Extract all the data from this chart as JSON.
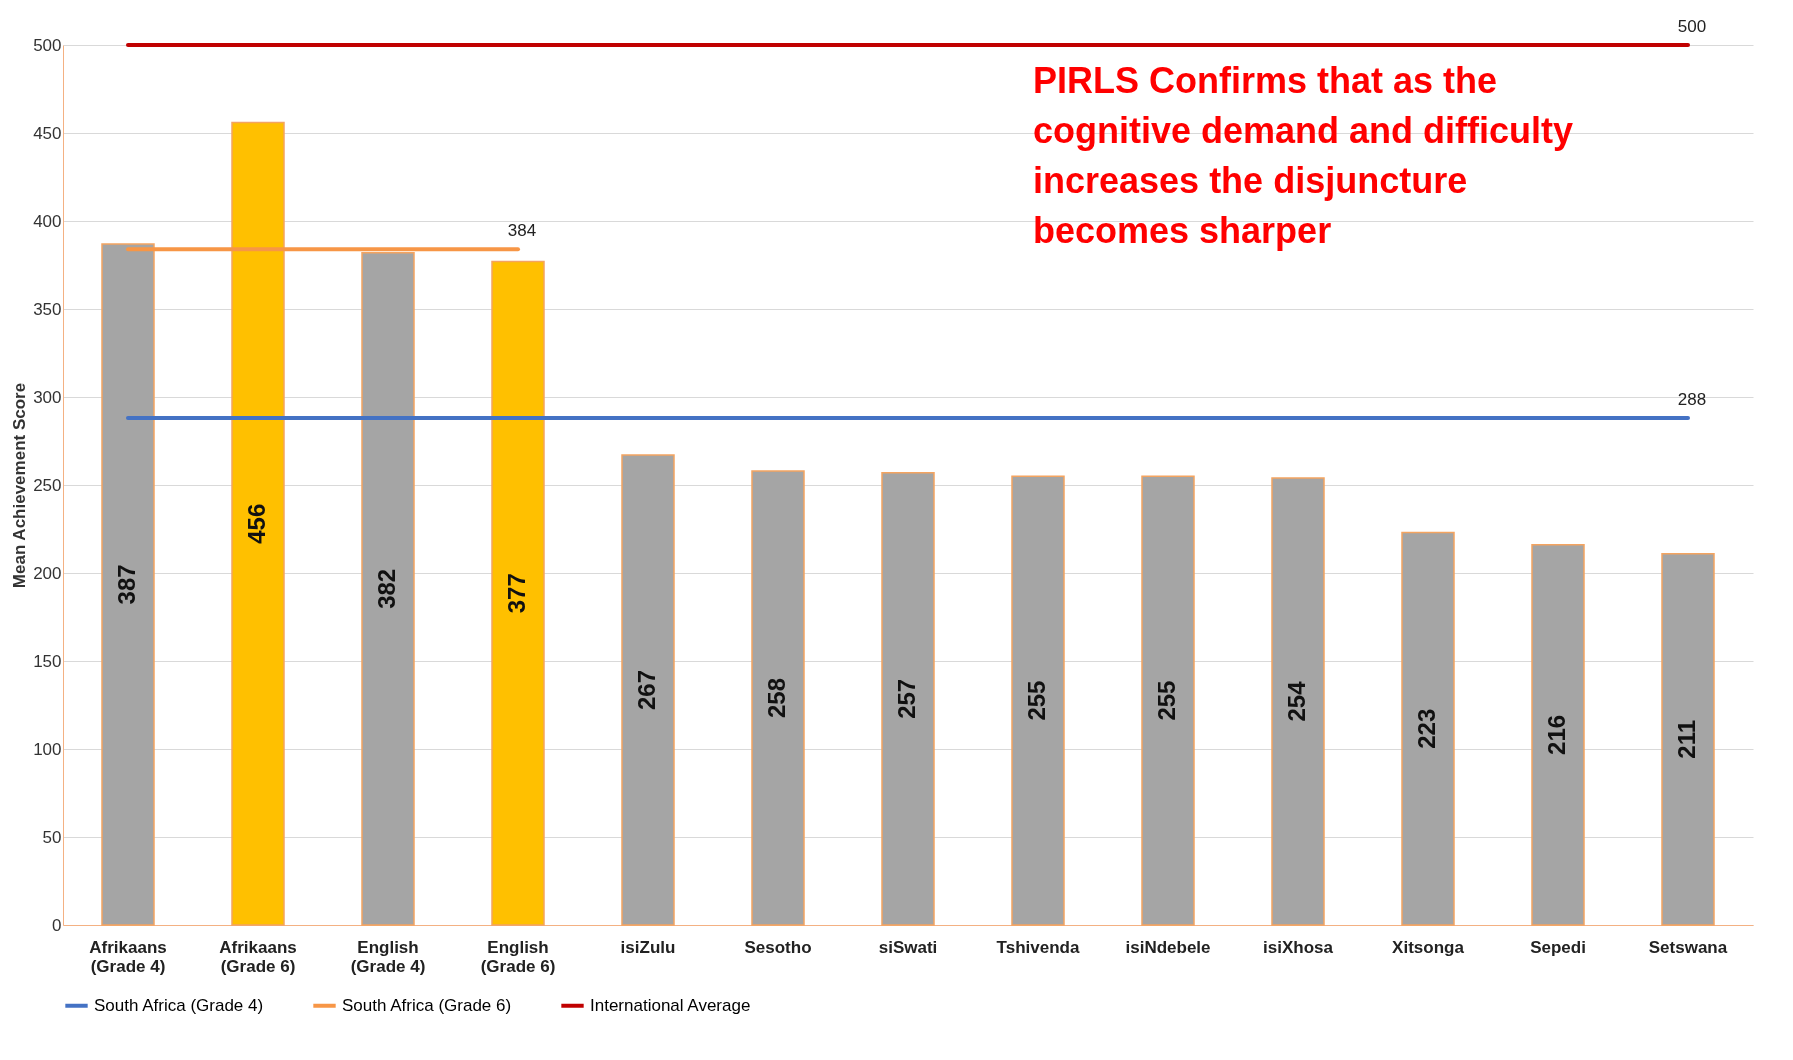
{
  "chart_data": {
    "type": "bar",
    "ylabel": "Mean Achievement Score",
    "ylim": [
      0,
      500
    ],
    "yticks": [
      0,
      50,
      100,
      150,
      200,
      250,
      300,
      350,
      400,
      450,
      500
    ],
    "grid": "y",
    "legend": "bottom",
    "categories": [
      "Afrikaans (Grade 4)",
      "Afrikaans (Grade 6)",
      "English (Grade 4)",
      "English (Grade 6)",
      "isiZulu",
      "Sesotho",
      "siSwati",
      "Tshivenda",
      "isiNdebele",
      "isiXhosa",
      "Xitsonga",
      "Sepedi",
      "Setswana"
    ],
    "annotations": [
      "PIRLS Confirms that as the cognitive demand and difficulty increases the disjuncture becomes sharper"
    ],
    "series": [
      {
        "colors": [
          "#a5a5a5",
          "#ffc000",
          "#a5a5a5",
          "#ffc000",
          "#a5a5a5",
          "#a5a5a5",
          "#a5a5a5",
          "#a5a5a5",
          "#a5a5a5",
          "#a5a5a5",
          "#a5a5a5",
          "#a5a5a5",
          "#a5a5a5"
        ],
        "values": [
          387,
          456,
          382,
          377,
          267,
          258,
          257,
          255,
          255,
          254,
          223,
          216,
          211
        ],
        "value_labels": [
          "387",
          "456",
          "382",
          "377",
          "267",
          "258",
          "257",
          "255",
          "255",
          "254",
          "223",
          "216",
          "211"
        ]
      },
      {
        "type": "line",
        "name": "South Africa (Grade 4)",
        "color": "#4472c4",
        "values": [
          288,
          288,
          288,
          288,
          288,
          288,
          288,
          288,
          288,
          288,
          288,
          288,
          288
        ],
        "value_labels": [
          null,
          null,
          null,
          null,
          null,
          null,
          null,
          null,
          null,
          null,
          null,
          null,
          "288"
        ]
      },
      {
        "type": "line",
        "name": "South Africa (Grade 6)",
        "color": "#f79646",
        "values": [
          384,
          384,
          384,
          384,
          null,
          null,
          null,
          null,
          null,
          null,
          null,
          null,
          null
        ],
        "value_labels": [
          null,
          null,
          null,
          "384",
          null,
          null,
          null,
          null,
          null,
          null,
          null,
          null,
          null
        ]
      },
      {
        "type": "line",
        "name": "International Average",
        "color": "#c00000",
        "values": [
          500,
          500,
          500,
          500,
          500,
          500,
          500,
          500,
          500,
          500,
          500,
          500,
          500
        ],
        "value_labels": [
          null,
          null,
          null,
          null,
          null,
          null,
          null,
          null,
          null,
          null,
          null,
          null,
          "500"
        ]
      }
    ]
  }
}
